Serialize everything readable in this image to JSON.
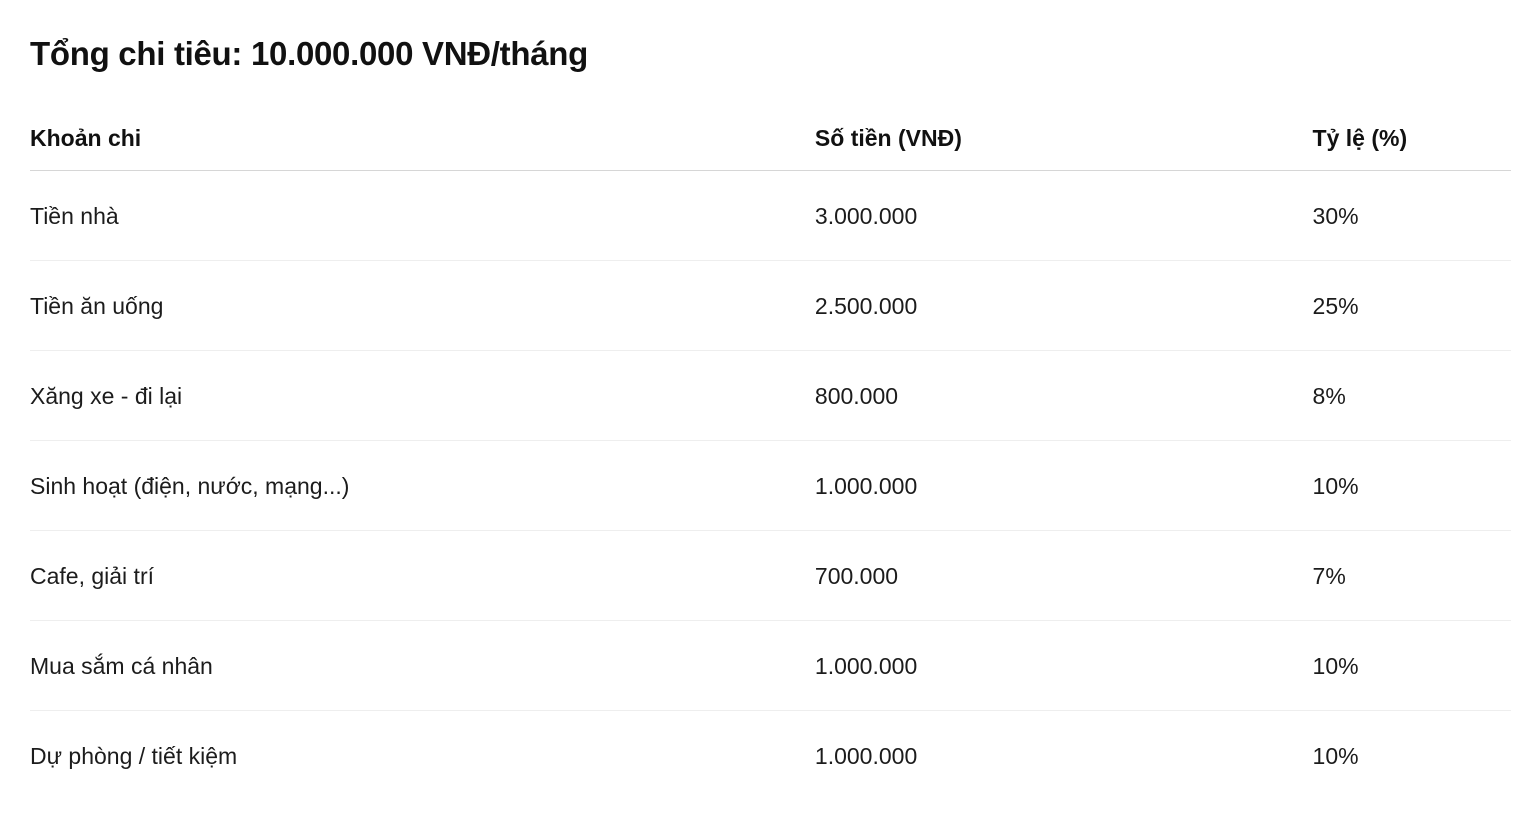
{
  "page": {
    "title": "Tổng chi tiêu: 10.000.000 VNĐ/tháng"
  },
  "table": {
    "columns": [
      "Khoản chi",
      "Số tiền (VNĐ)",
      "Tỷ lệ (%)"
    ],
    "rows": [
      {
        "category": "Tiền nhà",
        "amount": "3.000.000",
        "percent": "30%"
      },
      {
        "category": "Tiền ăn uống",
        "amount": "2.500.000",
        "percent": "25%"
      },
      {
        "category": "Xăng xe - đi lại",
        "amount": "800.000",
        "percent": "8%"
      },
      {
        "category": "Sinh hoạt (điện, nước, mạng...)",
        "amount": "1.000.000",
        "percent": "10%"
      },
      {
        "category": "Cafe, giải trí",
        "amount": "700.000",
        "percent": "7%"
      },
      {
        "category": "Mua sắm cá nhân",
        "amount": "1.000.000",
        "percent": "10%"
      },
      {
        "category": "Dự phòng / tiết kiệm",
        "amount": "1.000.000",
        "percent": "10%"
      }
    ]
  },
  "colors": {
    "text": "#1c1c1c",
    "header_border": "#d6d6d6",
    "row_border": "#eeeeee",
    "background": "#ffffff"
  }
}
